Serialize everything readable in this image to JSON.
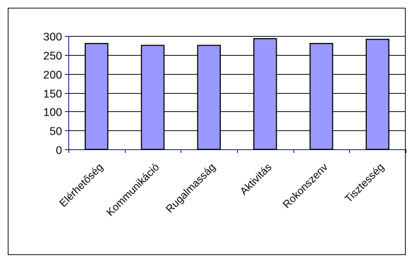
{
  "chart_data": {
    "type": "bar",
    "categories": [
      "Elérhetőség",
      "Kommunikáció",
      "Rugalmasság",
      "Aktivitás",
      "Rokonszenv",
      "Tisztesség"
    ],
    "values": [
      280,
      275,
      275,
      293,
      280,
      291
    ],
    "y_ticks": [
      "0",
      "50",
      "100",
      "150",
      "200",
      "250",
      "300"
    ],
    "ylim": [
      0,
      300
    ],
    "grid": "horizontal major gridlines",
    "legend": "none",
    "colors": {
      "bar_fill": "#9999ff",
      "bar_stroke": "#000000",
      "axis": "#000080",
      "grid": "#000000"
    }
  }
}
